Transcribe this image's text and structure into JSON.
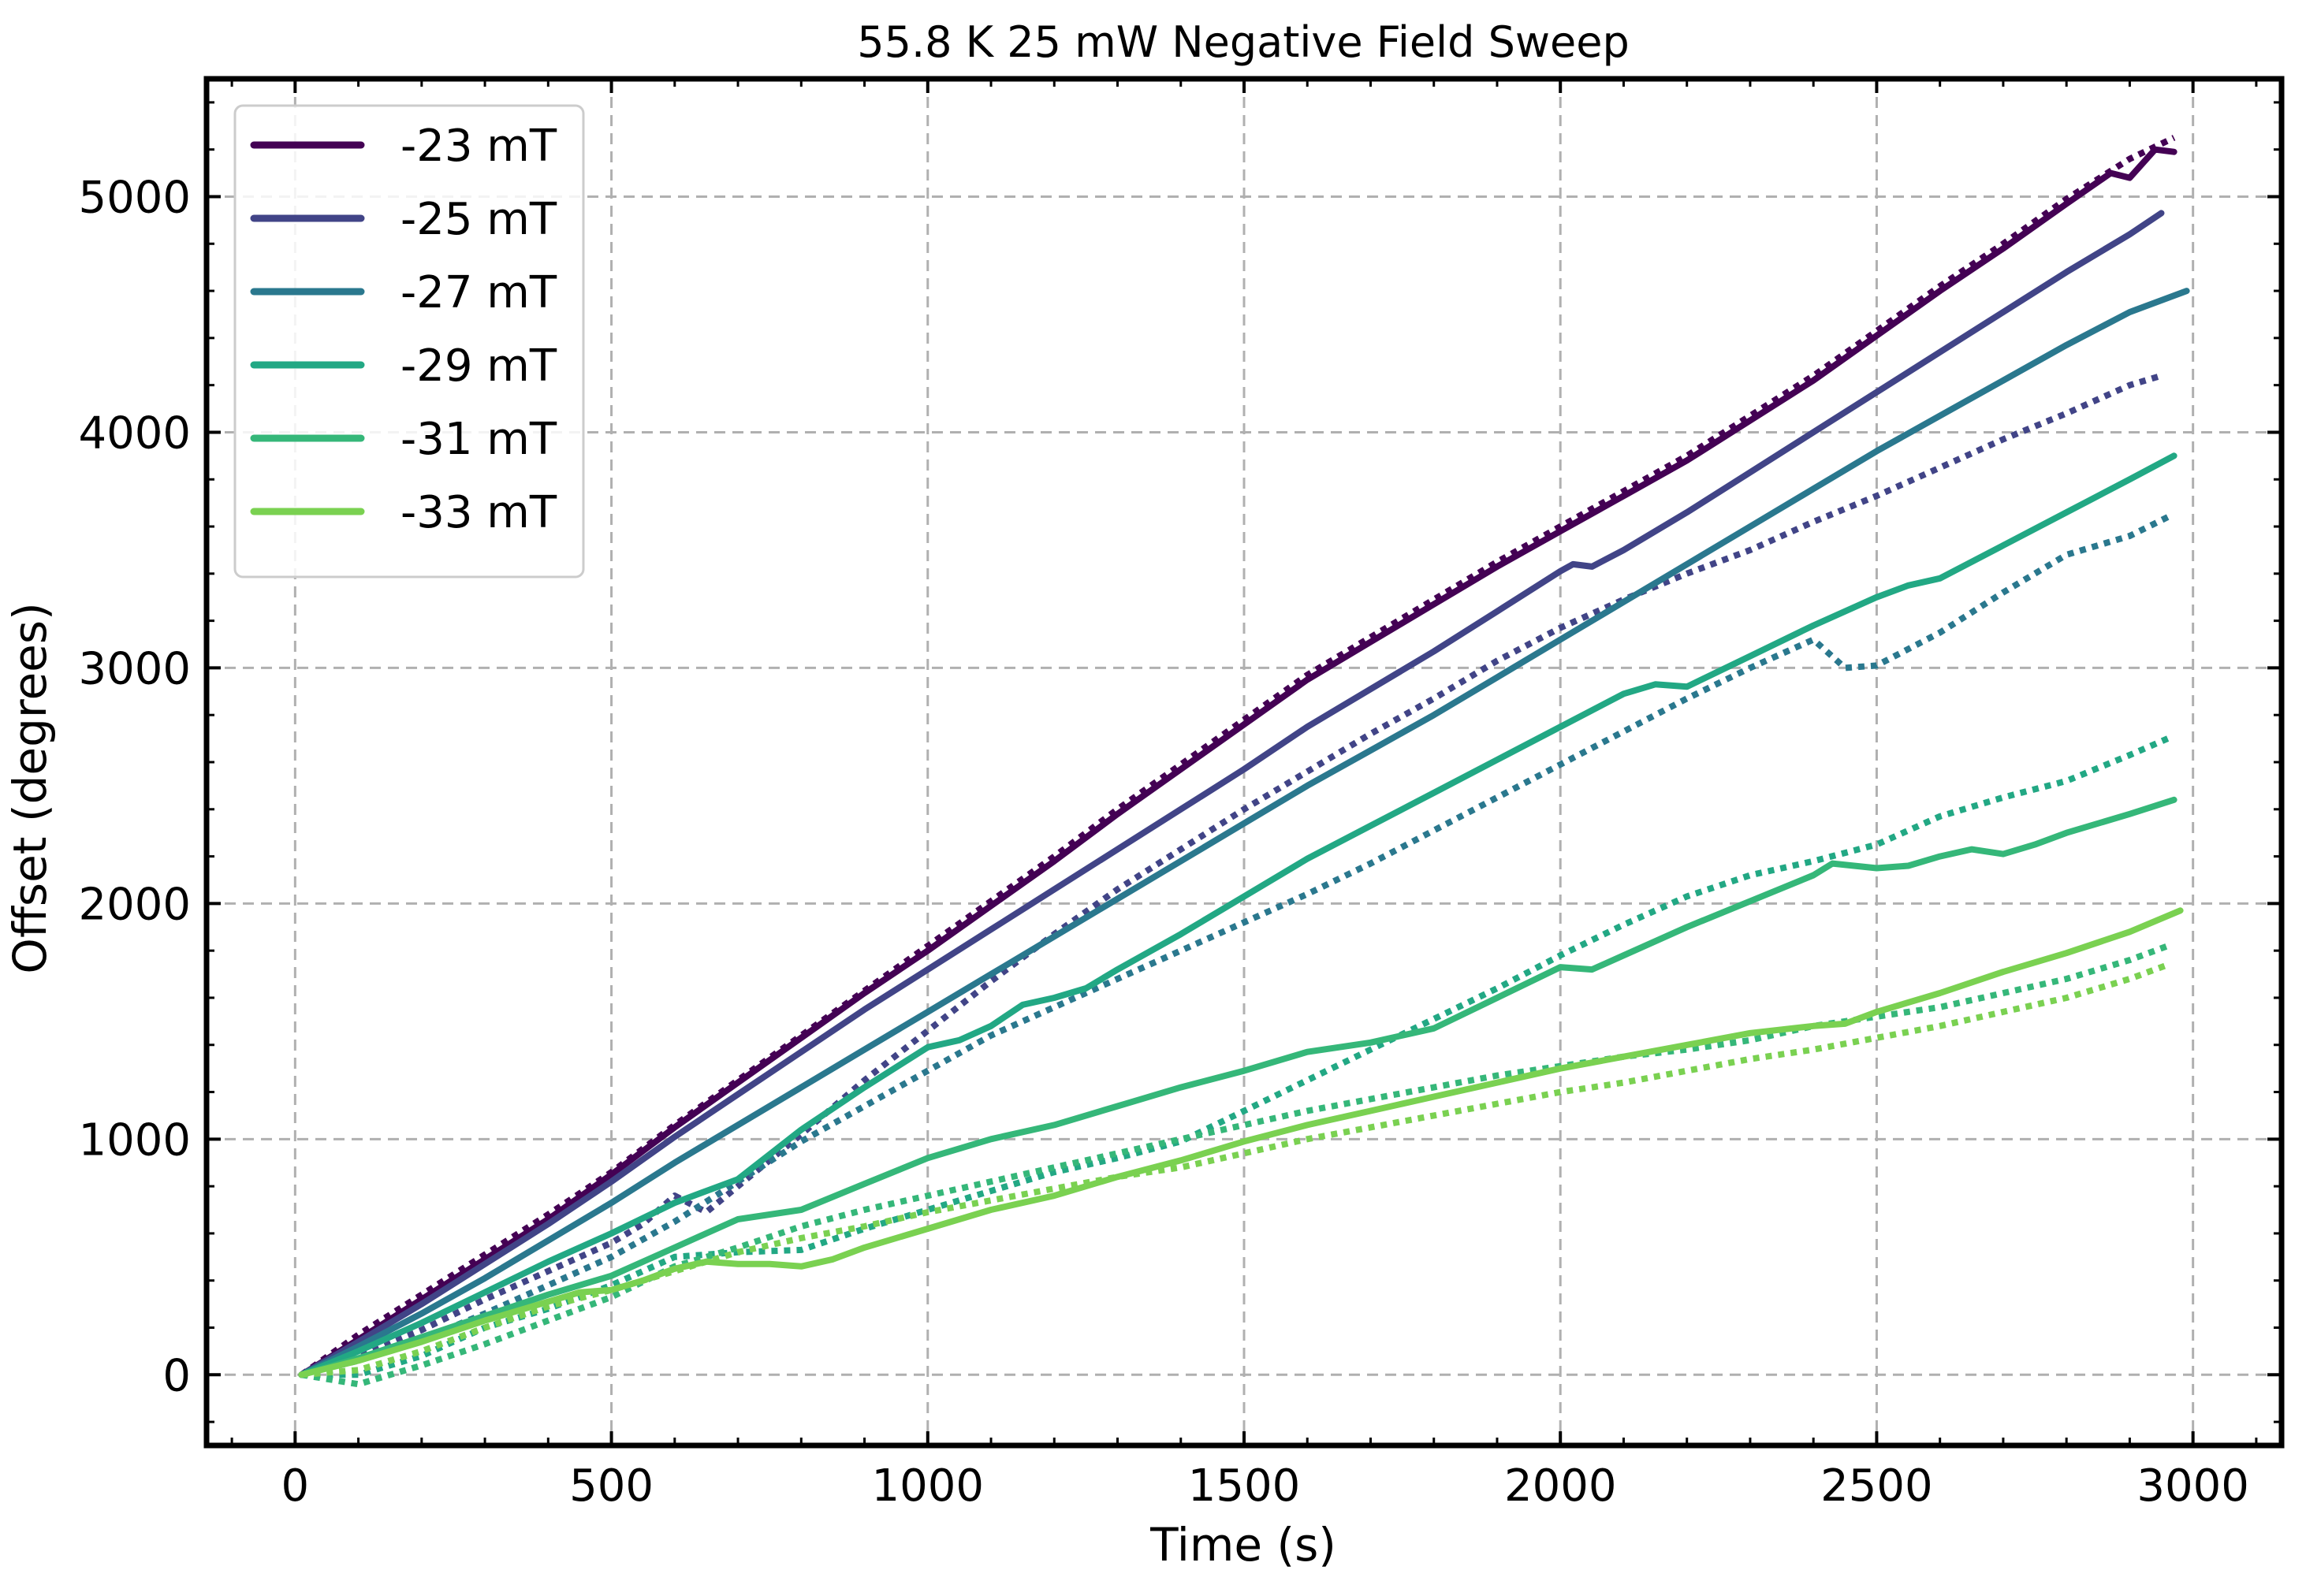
{
  "chart_data": {
    "type": "line",
    "title": "55.8 K 25 mW Negative Field Sweep",
    "xlabel": "Time (s)",
    "ylabel": "Offset (degrees)",
    "xlim": [
      -140,
      3140
    ],
    "ylim": [
      -300,
      5500
    ],
    "xticks": [
      0,
      500,
      1000,
      1500,
      2000,
      2500,
      3000
    ],
    "xtick_labels": [
      "0",
      "500",
      "1000",
      "1500",
      "2000",
      "2500",
      "3000"
    ],
    "yticks": [
      0,
      1000,
      2000,
      3000,
      4000,
      5000
    ],
    "ytick_labels": [
      "0",
      "1000",
      "2000",
      "3000",
      "4000",
      "5000"
    ],
    "grid": true,
    "legend_position": "upper-left",
    "series": [
      {
        "name": "-23 mT",
        "color": "#440154",
        "style": "solid",
        "x": [
          10,
          100,
          200,
          300,
          400,
          500,
          600,
          700,
          800,
          900,
          1000,
          1100,
          1200,
          1300,
          1400,
          1500,
          1600,
          1700,
          1800,
          1900,
          2000,
          2100,
          2200,
          2300,
          2400,
          2500,
          2600,
          2700,
          2800,
          2870,
          2900,
          2940,
          2970
        ],
        "y": [
          0,
          150,
          320,
          490,
          660,
          850,
          1050,
          1240,
          1430,
          1620,
          1800,
          1990,
          2180,
          2380,
          2570,
          2760,
          2950,
          3110,
          3270,
          3430,
          3580,
          3730,
          3880,
          4050,
          4220,
          4410,
          4600,
          4780,
          4970,
          5100,
          5080,
          5200,
          5190
        ]
      },
      {
        "name": "-23 mT",
        "color": "#440154",
        "style": "dotted",
        "x": [
          10,
          100,
          200,
          300,
          400,
          500,
          600,
          700,
          800,
          900,
          1000,
          1100,
          1200,
          1300,
          1400,
          1500,
          1600,
          1700,
          1800,
          1900,
          2000,
          2100,
          2200,
          2300,
          2400,
          2500,
          2600,
          2700,
          2800,
          2900,
          2970
        ],
        "y": [
          0,
          170,
          340,
          510,
          680,
          860,
          1060,
          1250,
          1440,
          1630,
          1820,
          2010,
          2200,
          2400,
          2590,
          2780,
          2970,
          3130,
          3290,
          3450,
          3600,
          3750,
          3900,
          4070,
          4240,
          4430,
          4620,
          4800,
          4990,
          5160,
          5250
        ]
      },
      {
        "name": "-25 mT",
        "color": "#414487",
        "style": "solid",
        "x": [
          10,
          100,
          200,
          300,
          400,
          500,
          600,
          700,
          800,
          900,
          1000,
          1100,
          1200,
          1300,
          1400,
          1500,
          1600,
          1700,
          1800,
          1900,
          2000,
          2020,
          2050,
          2100,
          2200,
          2300,
          2400,
          2500,
          2600,
          2700,
          2800,
          2900,
          2950
        ],
        "y": [
          0,
          140,
          300,
          470,
          640,
          820,
          1010,
          1190,
          1370,
          1550,
          1720,
          1890,
          2060,
          2230,
          2400,
          2570,
          2750,
          2910,
          3070,
          3240,
          3410,
          3440,
          3430,
          3500,
          3660,
          3830,
          4000,
          4170,
          4340,
          4510,
          4680,
          4840,
          4930
        ]
      },
      {
        "name": "-25 mT",
        "color": "#414487",
        "style": "dotted",
        "x": [
          10,
          100,
          200,
          300,
          400,
          500,
          550,
          600,
          650,
          700,
          800,
          900,
          1000,
          1100,
          1200,
          1300,
          1400,
          1500,
          1600,
          1700,
          1800,
          1900,
          2000,
          2100,
          2200,
          2300,
          2400,
          2500,
          2600,
          2700,
          2800,
          2900,
          2950
        ],
        "y": [
          0,
          80,
          190,
          320,
          440,
          560,
          640,
          760,
          690,
          800,
          1020,
          1250,
          1460,
          1670,
          1870,
          2060,
          2230,
          2400,
          2560,
          2720,
          2870,
          3030,
          3170,
          3290,
          3400,
          3500,
          3620,
          3730,
          3850,
          3970,
          4080,
          4200,
          4240
        ]
      },
      {
        "name": "-27 mT",
        "color": "#2a788e",
        "style": "solid",
        "x": [
          10,
          100,
          200,
          300,
          400,
          500,
          600,
          700,
          800,
          900,
          1000,
          1100,
          1200,
          1300,
          1400,
          1500,
          1600,
          1700,
          1800,
          1900,
          2000,
          2100,
          2200,
          2300,
          2400,
          2500,
          2600,
          2700,
          2800,
          2900,
          2990
        ],
        "y": [
          0,
          120,
          260,
          410,
          570,
          730,
          900,
          1060,
          1220,
          1380,
          1540,
          1700,
          1860,
          2020,
          2180,
          2340,
          2500,
          2650,
          2800,
          2960,
          3120,
          3280,
          3440,
          3600,
          3760,
          3920,
          4070,
          4220,
          4370,
          4510,
          4600
        ]
      },
      {
        "name": "-27 mT",
        "color": "#2a788e",
        "style": "dotted",
        "x": [
          10,
          100,
          200,
          300,
          400,
          500,
          600,
          700,
          800,
          900,
          1000,
          1100,
          1200,
          1300,
          1400,
          1500,
          1600,
          1700,
          1800,
          1900,
          2000,
          2100,
          2200,
          2300,
          2400,
          2450,
          2500,
          2600,
          2700,
          2800,
          2900,
          2960
        ],
        "y": [
          0,
          60,
          150,
          260,
          380,
          500,
          650,
          820,
          990,
          1140,
          1290,
          1440,
          1560,
          1680,
          1800,
          1920,
          2040,
          2170,
          2310,
          2450,
          2590,
          2730,
          2870,
          3000,
          3120,
          3000,
          3010,
          3150,
          3320,
          3480,
          3560,
          3640
        ]
      },
      {
        "name": "-29 mT",
        "color": "#22a884",
        "style": "solid",
        "x": [
          10,
          100,
          200,
          300,
          400,
          500,
          600,
          650,
          700,
          800,
          900,
          1000,
          1050,
          1100,
          1150,
          1200,
          1250,
          1300,
          1400,
          1500,
          1600,
          1700,
          1800,
          1900,
          2000,
          2100,
          2150,
          2200,
          2300,
          2400,
          2500,
          2550,
          2600,
          2700,
          2800,
          2900,
          2970
        ],
        "y": [
          0,
          100,
          220,
          350,
          480,
          600,
          730,
          780,
          830,
          1040,
          1220,
          1390,
          1420,
          1480,
          1570,
          1600,
          1640,
          1720,
          1870,
          2030,
          2190,
          2330,
          2470,
          2610,
          2750,
          2890,
          2930,
          2920,
          3050,
          3180,
          3300,
          3350,
          3380,
          3520,
          3660,
          3800,
          3900
        ]
      },
      {
        "name": "-29 mT",
        "color": "#22a884",
        "style": "dotted",
        "x": [
          10,
          100,
          200,
          300,
          400,
          500,
          600,
          700,
          800,
          900,
          1000,
          1100,
          1200,
          1300,
          1400,
          1500,
          1600,
          1700,
          1800,
          1900,
          2000,
          2100,
          2200,
          2300,
          2400,
          2500,
          2600,
          2700,
          2800,
          2900,
          2960
        ],
        "y": [
          0,
          0,
          80,
          200,
          280,
          380,
          500,
          520,
          530,
          620,
          700,
          780,
          860,
          920,
          990,
          1120,
          1250,
          1380,
          1510,
          1640,
          1780,
          1910,
          2030,
          2120,
          2180,
          2250,
          2370,
          2450,
          2520,
          2630,
          2700
        ]
      },
      {
        "name": "-31 mT",
        "color": "#35b779",
        "style": "solid",
        "x": [
          10,
          100,
          200,
          300,
          400,
          500,
          600,
          650,
          700,
          800,
          900,
          1000,
          1100,
          1200,
          1300,
          1400,
          1500,
          1600,
          1700,
          1800,
          1900,
          2000,
          2050,
          2100,
          2200,
          2300,
          2400,
          2430,
          2500,
          2550,
          2600,
          2650,
          2700,
          2750,
          2800,
          2900,
          2970
        ],
        "y": [
          0,
          70,
          160,
          250,
          340,
          420,
          540,
          600,
          660,
          700,
          810,
          920,
          1000,
          1060,
          1140,
          1220,
          1290,
          1370,
          1410,
          1470,
          1600,
          1730,
          1720,
          1780,
          1900,
          2010,
          2120,
          2170,
          2150,
          2160,
          2200,
          2230,
          2210,
          2250,
          2300,
          2380,
          2440
        ]
      },
      {
        "name": "-31 mT",
        "color": "#35b779",
        "style": "dotted",
        "x": [
          10,
          100,
          200,
          300,
          400,
          500,
          600,
          700,
          800,
          900,
          1000,
          1100,
          1200,
          1300,
          1400,
          1500,
          1600,
          1700,
          1800,
          1900,
          2000,
          2100,
          2200,
          2300,
          2400,
          2500,
          2600,
          2700,
          2800,
          2900,
          2960
        ],
        "y": [
          0,
          -40,
          40,
          130,
          230,
          330,
          460,
          540,
          630,
          700,
          760,
          820,
          880,
          940,
          1000,
          1060,
          1120,
          1170,
          1220,
          1270,
          1310,
          1350,
          1380,
          1420,
          1480,
          1520,
          1560,
          1620,
          1680,
          1760,
          1820
        ]
      },
      {
        "name": "-33 mT",
        "color": "#7ad151",
        "style": "solid",
        "x": [
          10,
          100,
          200,
          300,
          400,
          450,
          500,
          550,
          600,
          650,
          700,
          750,
          800,
          850,
          900,
          1000,
          1100,
          1200,
          1300,
          1400,
          1500,
          1600,
          1700,
          1800,
          1900,
          2000,
          2100,
          2200,
          2300,
          2400,
          2450,
          2500,
          2600,
          2700,
          2800,
          2900,
          2980
        ],
        "y": [
          0,
          60,
          140,
          230,
          310,
          350,
          360,
          400,
          450,
          480,
          470,
          470,
          460,
          490,
          540,
          620,
          700,
          760,
          840,
          910,
          990,
          1060,
          1120,
          1180,
          1240,
          1300,
          1350,
          1400,
          1450,
          1480,
          1490,
          1540,
          1620,
          1710,
          1790,
          1880,
          1970
        ]
      },
      {
        "name": "-33 mT",
        "color": "#7ad151",
        "style": "dotted",
        "x": [
          10,
          100,
          200,
          300,
          400,
          500,
          600,
          700,
          800,
          900,
          1000,
          1100,
          1200,
          1300,
          1400,
          1500,
          1600,
          1700,
          1800,
          1900,
          2000,
          2100,
          2200,
          2300,
          2400,
          2500,
          2600,
          2700,
          2800,
          2900,
          2960
        ],
        "y": [
          0,
          20,
          100,
          200,
          290,
          360,
          440,
          520,
          580,
          630,
          690,
          740,
          790,
          840,
          880,
          940,
          1000,
          1050,
          1100,
          1150,
          1200,
          1240,
          1290,
          1340,
          1380,
          1430,
          1480,
          1540,
          1600,
          1680,
          1740
        ]
      }
    ]
  }
}
